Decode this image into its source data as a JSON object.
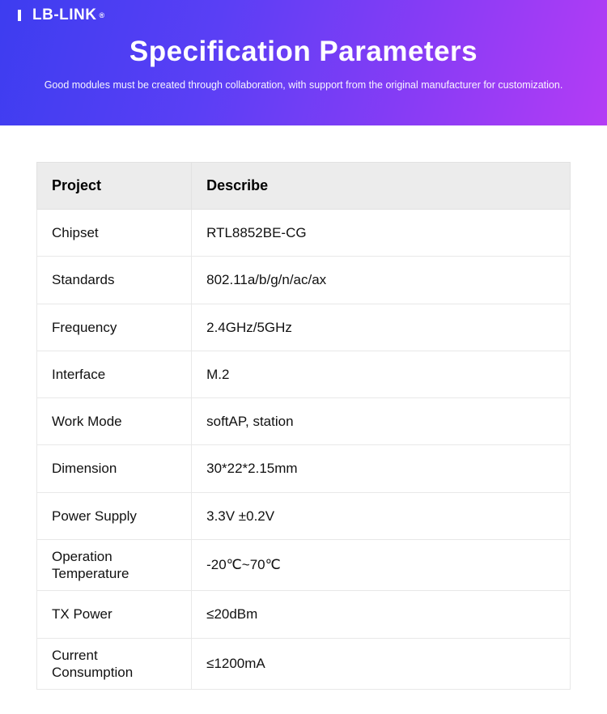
{
  "header": {
    "logo_text": "LB-LINK",
    "logo_reg": "®",
    "title": "Specification Parameters",
    "subtitle": "Good modules must be created through collaboration, with support from the original manufacturer for customization.",
    "gradient_from": "#3d3df0",
    "gradient_to": "#b43cf5"
  },
  "table": {
    "type": "table",
    "header_bg": "#ececec",
    "cell_bg": "#ffffff",
    "border_color": "#e8e8e8",
    "font_size_header": 18,
    "font_size_cell": 17,
    "columns": [
      "Project",
      "Describe"
    ],
    "rows": [
      [
        "Chipset",
        "RTL8852BE-CG"
      ],
      [
        "Standards",
        "802.11a/b/g/n/ac/ax"
      ],
      [
        "Frequency",
        "2.4GHz/5GHz"
      ],
      [
        "Interface",
        "M.2"
      ],
      [
        "Work Mode",
        "softAP, station"
      ],
      [
        "Dimension",
        "30*22*2.15mm"
      ],
      [
        "Power Supply",
        "3.3V ±0.2V"
      ],
      [
        "Operation Temperature",
        "-20℃~70℃"
      ],
      [
        "TX Power",
        "≤20dBm"
      ],
      [
        "Current Consumption",
        "≤1200mA"
      ]
    ],
    "tight_rows": [
      7,
      9
    ]
  }
}
